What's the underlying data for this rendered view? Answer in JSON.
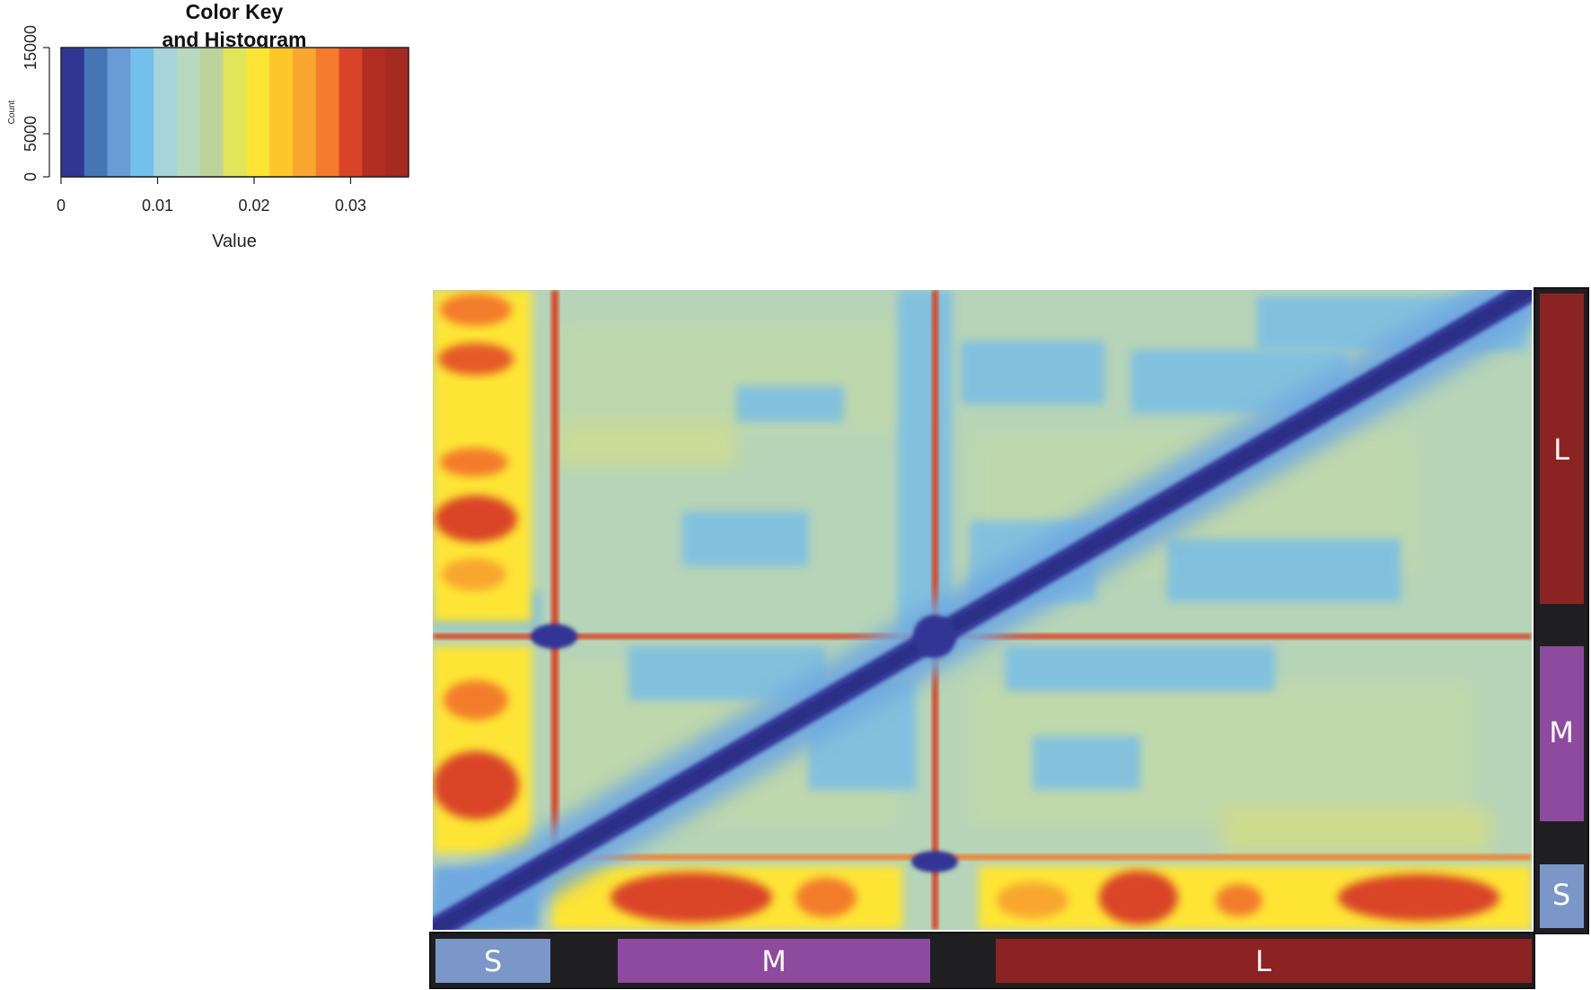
{
  "chart_data": {
    "type": "heatmap",
    "color_key": {
      "title_lines": [
        "Color Key",
        "and Histogram"
      ],
      "x_axis_label": "Value",
      "x_ticks": [
        {
          "value": 0,
          "label": "0"
        },
        {
          "value": 0.01,
          "label": "0.01"
        },
        {
          "value": 0.02,
          "label": "0.02"
        },
        {
          "value": 0.03,
          "label": "0.03"
        }
      ],
      "y_axis_label": "Count",
      "y_ticks": [
        {
          "value": 0,
          "label": "0"
        },
        {
          "value": 5000,
          "label": "5000"
        },
        {
          "value": 15000,
          "label": "15000"
        }
      ],
      "value_range": [
        0,
        0.036
      ],
      "count_range": [
        0,
        15000
      ],
      "colors": [
        "#313695",
        "#4575b4",
        "#6a9bd4",
        "#74c0ec",
        "#a6d4d8",
        "#b8d9c0",
        "#bdd39a",
        "#e0e55a",
        "#fee535",
        "#fdc72a",
        "#f8a62f",
        "#f37b2b",
        "#d94428",
        "#b22d22",
        "#a52a1f"
      ]
    },
    "heatmap": {
      "description_free": true,
      "groups": [
        "S",
        "M",
        "L"
      ],
      "column_bands": [
        {
          "label": "S",
          "fraction_start": 0.0,
          "fraction_end": 0.106,
          "color": "#7b97c8"
        },
        {
          "label": "M",
          "fraction_start": 0.168,
          "fraction_end": 0.453,
          "color": "#8e4a9e"
        },
        {
          "label": "L",
          "fraction_start": 0.512,
          "fraction_end": 1.0,
          "color": "#8b2323"
        }
      ],
      "row_bands": [
        {
          "label": "L",
          "fraction_start": 0.0,
          "fraction_end": 0.49,
          "color": "#8b2323"
        },
        {
          "label": "M",
          "fraction_start": 0.555,
          "fraction_end": 0.83,
          "color": "#8e4a9e"
        },
        {
          "label": "S",
          "fraction_start": 0.895,
          "fraction_end": 1.0,
          "color": "#7b97c8"
        }
      ],
      "background_value": 0.016,
      "diagonal_value": 0.0,
      "hot_value": 0.034
    }
  },
  "labels": {
    "col_S": "S",
    "col_M": "M",
    "col_L": "L",
    "row_L": "L",
    "row_M": "M",
    "row_S": "S"
  }
}
